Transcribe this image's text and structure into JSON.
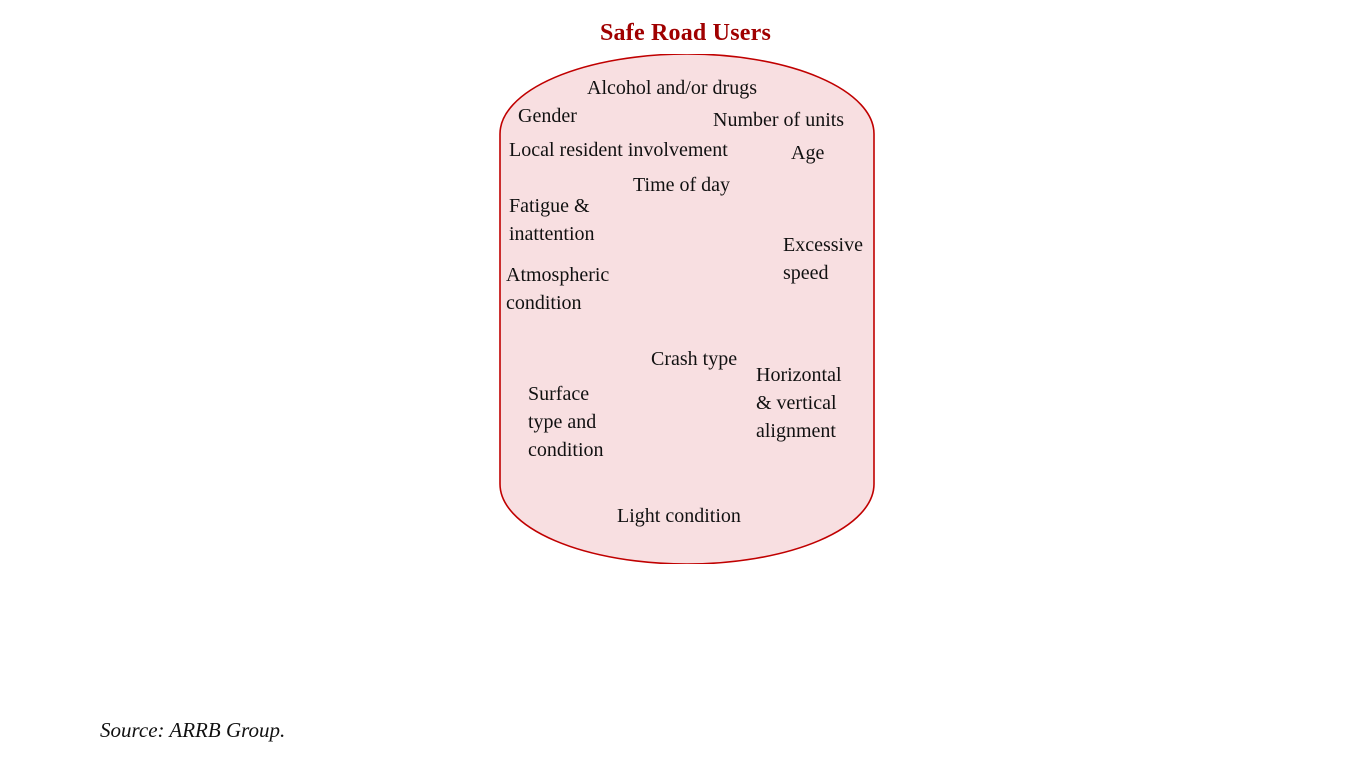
{
  "title": "Safe Road Users",
  "colors": {
    "title": "#a00000",
    "shape_fill": "#f8dfe1",
    "shape_stroke": "#c00000"
  },
  "factors": {
    "alcohol": "Alcohol and/or drugs",
    "gender": "Gender",
    "units": "Number of units",
    "local": "Local resident involvement",
    "age": "Age",
    "time": "Time of day",
    "fatigue": "Fatigue &\ninattention",
    "speed": "Excessive\nspeed",
    "atmospheric": "Atmospheric\ncondition",
    "crash": "Crash type",
    "alignment": "Horizontal\n& vertical\nalignment",
    "surface": "Surface\ntype and\ncondition",
    "light": "Light condition"
  },
  "source": "Source: ARRB Group."
}
